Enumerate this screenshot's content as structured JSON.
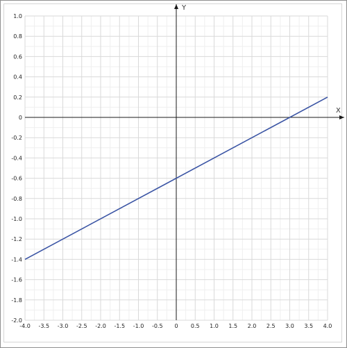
{
  "chart_data": {
    "type": "line",
    "xlabel": "X",
    "ylabel": "Y",
    "xlim": [
      -4.0,
      4.0
    ],
    "ylim": [
      -2.0,
      1.0
    ],
    "x_ticks": [
      "-4.0",
      "-3.5",
      "-3.0",
      "-2.5",
      "-2.0",
      "-1.5",
      "-1.0",
      "-0.5",
      "0",
      "0.5",
      "1.0",
      "1.5",
      "2.0",
      "2.5",
      "3.0",
      "3.5",
      "4.0"
    ],
    "y_ticks": [
      "1.0",
      "0.8",
      "0.6",
      "0.4",
      "0.2",
      "0",
      "-0.2",
      "-0.4",
      "-0.6",
      "-0.8",
      "-1.0",
      "-1.2",
      "-1.4",
      "-1.6",
      "-1.8",
      "-2.0"
    ],
    "grid": true,
    "series": [
      {
        "x": [
          -4.0,
          4.0
        ],
        "y": [
          -1.4,
          0.2
        ],
        "color": "#3a54a4"
      }
    ]
  }
}
